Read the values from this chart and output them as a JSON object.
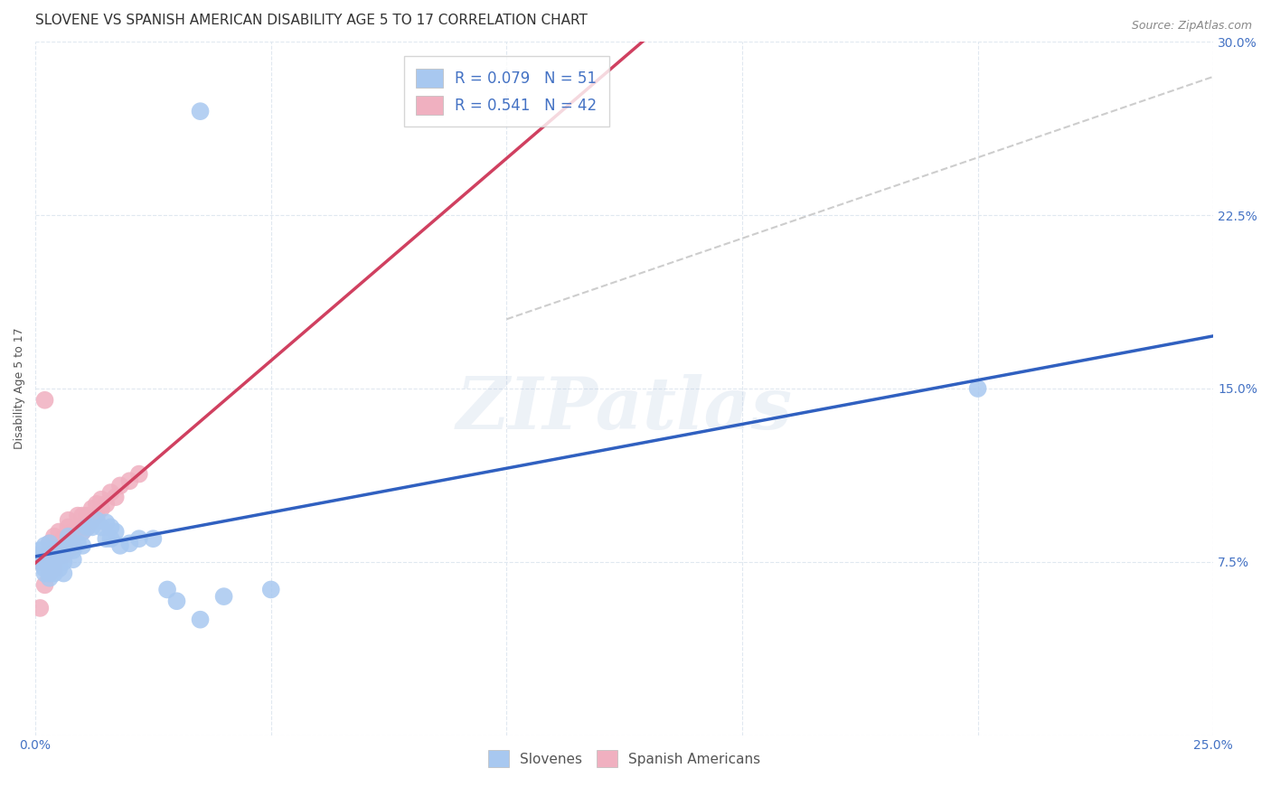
{
  "title": "SLOVENE VS SPANISH AMERICAN DISABILITY AGE 5 TO 17 CORRELATION CHART",
  "source": "Source: ZipAtlas.com",
  "ylabel": "Disability Age 5 to 17",
  "xlim": [
    0.0,
    0.25
  ],
  "ylim": [
    0.0,
    0.3
  ],
  "xticks": [
    0.0,
    0.05,
    0.1,
    0.15,
    0.2,
    0.25
  ],
  "yticks": [
    0.0,
    0.075,
    0.15,
    0.225,
    0.3
  ],
  "slovene_color": "#a8c8f0",
  "spanish_color": "#f0b0c0",
  "slovene_line_color": "#3060c0",
  "spanish_line_color": "#d04060",
  "ref_line_color": "#c8c8c8",
  "background_color": "#ffffff",
  "grid_color": "#e0e8f0",
  "tick_color": "#4472c4",
  "watermark_text": "ZIPatlas",
  "legend_label_1": "R = 0.079   N = 51",
  "legend_label_2": "R = 0.541   N = 42",
  "slovene_x": [
    0.001,
    0.001,
    0.001,
    0.002,
    0.002,
    0.002,
    0.002,
    0.002,
    0.003,
    0.003,
    0.003,
    0.003,
    0.003,
    0.003,
    0.003,
    0.004,
    0.004,
    0.004,
    0.004,
    0.005,
    0.005,
    0.005,
    0.006,
    0.006,
    0.007,
    0.007,
    0.008,
    0.008,
    0.009,
    0.01,
    0.01,
    0.011,
    0.012,
    0.013,
    0.014,
    0.015,
    0.015,
    0.016,
    0.016,
    0.017,
    0.018,
    0.02,
    0.022,
    0.025,
    0.028,
    0.03,
    0.035,
    0.04,
    0.05,
    0.2,
    0.035
  ],
  "slovene_y": [
    0.075,
    0.078,
    0.08,
    0.07,
    0.072,
    0.075,
    0.078,
    0.082,
    0.068,
    0.07,
    0.072,
    0.075,
    0.078,
    0.08,
    0.083,
    0.07,
    0.073,
    0.076,
    0.08,
    0.072,
    0.075,
    0.08,
    0.07,
    0.075,
    0.082,
    0.086,
    0.076,
    0.08,
    0.083,
    0.082,
    0.088,
    0.09,
    0.09,
    0.093,
    0.09,
    0.085,
    0.092,
    0.085,
    0.09,
    0.088,
    0.082,
    0.083,
    0.085,
    0.085,
    0.063,
    0.058,
    0.05,
    0.06,
    0.063,
    0.15,
    0.27
  ],
  "spanish_x": [
    0.001,
    0.001,
    0.002,
    0.002,
    0.002,
    0.003,
    0.003,
    0.003,
    0.003,
    0.004,
    0.004,
    0.004,
    0.004,
    0.005,
    0.005,
    0.005,
    0.006,
    0.006,
    0.007,
    0.007,
    0.007,
    0.007,
    0.008,
    0.008,
    0.009,
    0.009,
    0.01,
    0.01,
    0.011,
    0.011,
    0.012,
    0.012,
    0.013,
    0.013,
    0.014,
    0.014,
    0.015,
    0.016,
    0.017,
    0.018,
    0.02,
    0.022
  ],
  "spanish_y": [
    0.055,
    0.075,
    0.065,
    0.075,
    0.145,
    0.07,
    0.075,
    0.08,
    0.083,
    0.072,
    0.075,
    0.082,
    0.086,
    0.08,
    0.082,
    0.088,
    0.078,
    0.085,
    0.08,
    0.085,
    0.09,
    0.093,
    0.082,
    0.088,
    0.09,
    0.095,
    0.088,
    0.095,
    0.09,
    0.095,
    0.093,
    0.098,
    0.095,
    0.1,
    0.098,
    0.102,
    0.1,
    0.105,
    0.103,
    0.108,
    0.11,
    0.113
  ],
  "ref_line_x": [
    0.1,
    0.25
  ],
  "ref_line_y": [
    0.18,
    0.285
  ],
  "title_fontsize": 11,
  "axis_label_fontsize": 9,
  "tick_fontsize": 10,
  "source_fontsize": 9
}
